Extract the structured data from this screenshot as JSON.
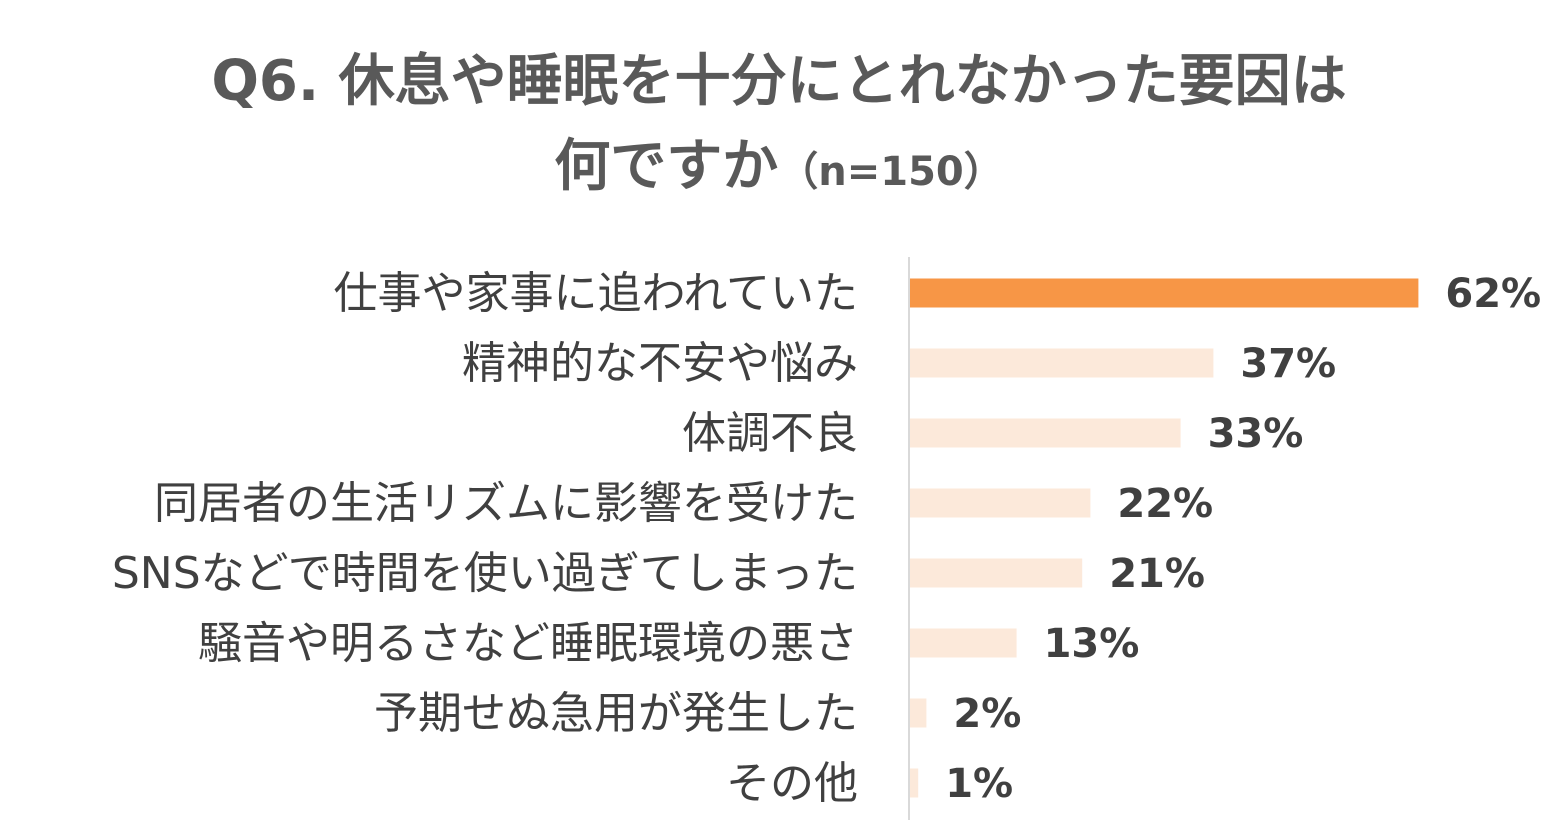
{
  "chart_data": {
    "type": "bar",
    "orientation": "horizontal",
    "title_line1": "Q6. 休息や睡眠を十分にとれなかった要因は",
    "title_line2": "何ですか",
    "title_n": "（n=150）",
    "categories": [
      "仕事や家事に追われていた",
      "精神的な不安や悩み",
      "体調不良",
      "同居者の生活リズムに影響を受けた",
      "SNSなどで時間を使い過ぎてしまった",
      "騒音や明るさなど睡眠環境の悪さ",
      "予期せぬ急用が発生した",
      "その他"
    ],
    "values": [
      62,
      37,
      33,
      22,
      21,
      13,
      2,
      1
    ],
    "value_labels": [
      "62%",
      "37%",
      "33%",
      "22%",
      "21%",
      "13%",
      "2%",
      "1%"
    ],
    "unit": "%",
    "xlim": [
      0,
      100
    ],
    "grid": false,
    "legend": "none",
    "highlight_color": "#F79646",
    "bar_color": "#FCE9DA",
    "axis_color": "#D9D9D9"
  }
}
